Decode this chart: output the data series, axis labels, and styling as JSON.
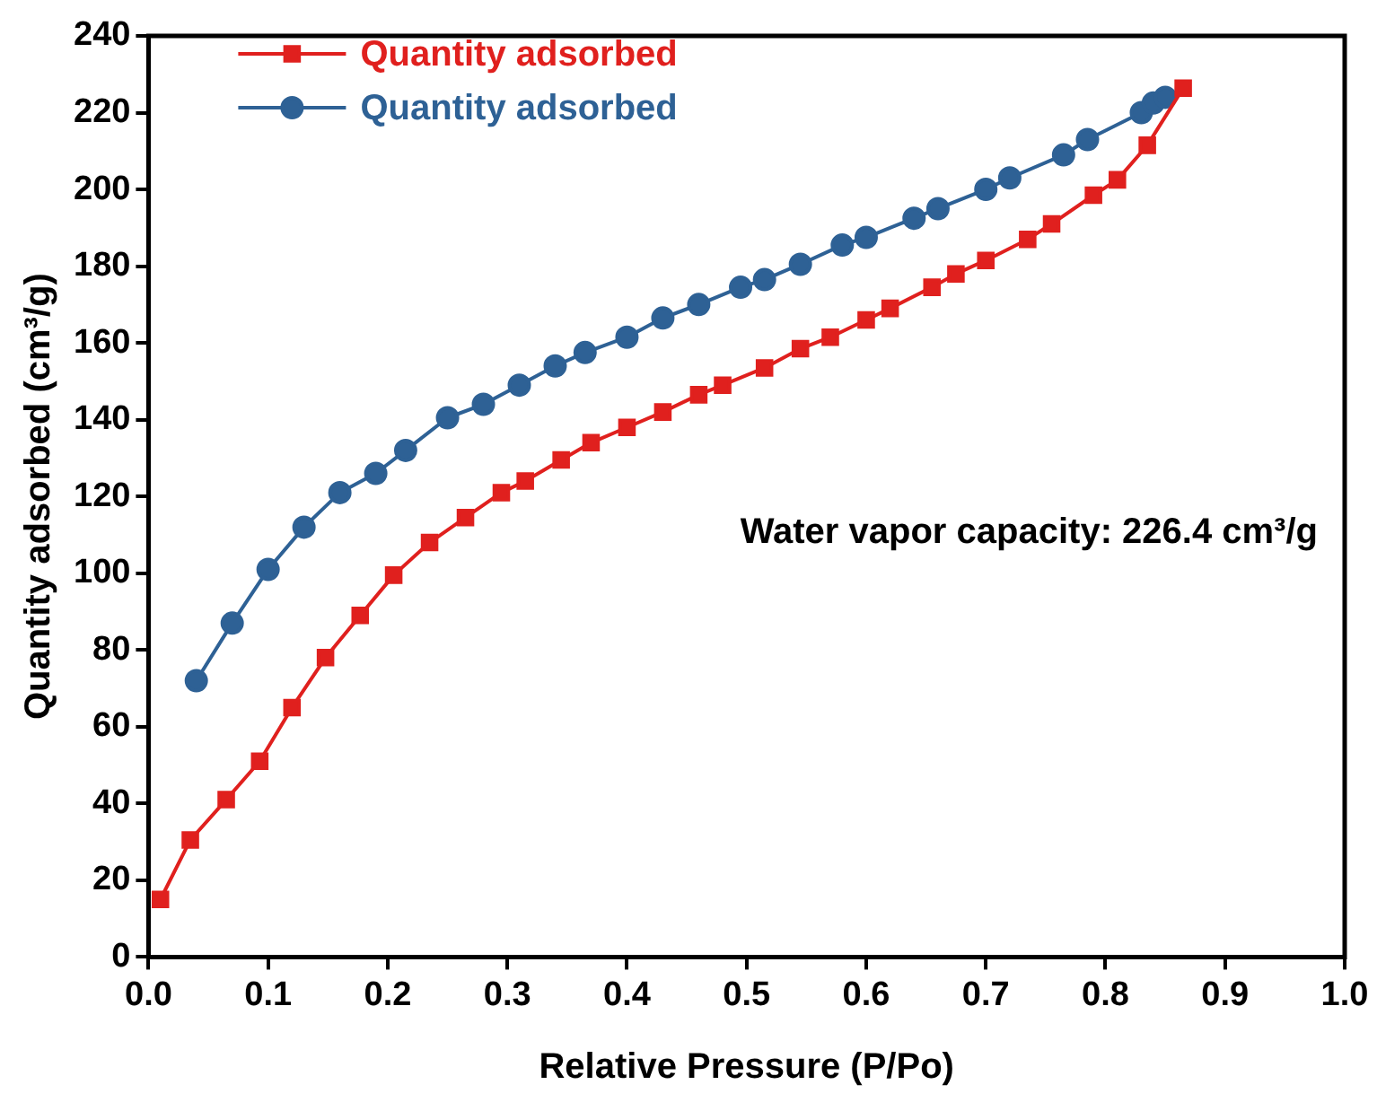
{
  "chart_data": {
    "type": "line",
    "xlabel": "Relative Pressure (P/Po)",
    "ylabel": "Quantity adsorbed (cm³/g)",
    "xlim": [
      0,
      1
    ],
    "xticks": [
      {
        "value": 0,
        "label": "0.0"
      },
      0.1,
      0.2,
      0.3,
      0.4,
      0.5,
      0.6,
      0.7,
      0.8,
      0.9,
      {
        "value": 1,
        "label": "1.0"
      }
    ],
    "ylim": [
      0,
      240
    ],
    "yticks": [
      0,
      20,
      40,
      60,
      80,
      100,
      120,
      140,
      160,
      180,
      200,
      220,
      240
    ],
    "legend": "top left",
    "grid": false,
    "line_style": "solid",
    "annotations": [
      "Water vapor capacity: 226.4 cm³/g"
    ],
    "series": [
      {
        "name": "Quantity adsorbed",
        "color": "#e0201e",
        "marker": "square",
        "x": [
          0.01,
          0.035,
          0.065,
          0.093,
          0.12,
          0.148,
          0.177,
          0.205,
          0.235,
          0.265,
          0.295,
          0.315,
          0.345,
          0.37,
          0.4,
          0.43,
          0.46,
          0.48,
          0.515,
          0.545,
          0.57,
          0.6,
          0.62,
          0.655,
          0.675,
          0.7,
          0.735,
          0.755,
          0.79,
          0.81,
          0.835,
          0.865
        ],
        "values": [
          15,
          30.5,
          41,
          51,
          65,
          78,
          89,
          99.5,
          108,
          114.5,
          121,
          124,
          129.5,
          134,
          138,
          142,
          146.5,
          149,
          153.5,
          158.5,
          161.5,
          166,
          169,
          174.5,
          178,
          181.5,
          187,
          191,
          198.5,
          202.5,
          211.5,
          226.4
        ]
      },
      {
        "name": "Quantity adsorbed",
        "color": "#2e6195",
        "marker": "circle",
        "x": [
          0.04,
          0.07,
          0.1,
          0.13,
          0.16,
          0.19,
          0.215,
          0.25,
          0.28,
          0.31,
          0.34,
          0.365,
          0.4,
          0.43,
          0.46,
          0.495,
          0.515,
          0.545,
          0.58,
          0.6,
          0.64,
          0.66,
          0.7,
          0.72,
          0.765,
          0.785,
          0.83,
          0.84,
          0.85
        ],
        "values": [
          72,
          87,
          101,
          112,
          121,
          126,
          132,
          140.5,
          144,
          149,
          154,
          157.5,
          161.5,
          166.5,
          170,
          174.5,
          176.5,
          180.5,
          185.5,
          187.5,
          192.5,
          195,
          200,
          203,
          209,
          213,
          220,
          222.5,
          224
        ]
      }
    ]
  }
}
